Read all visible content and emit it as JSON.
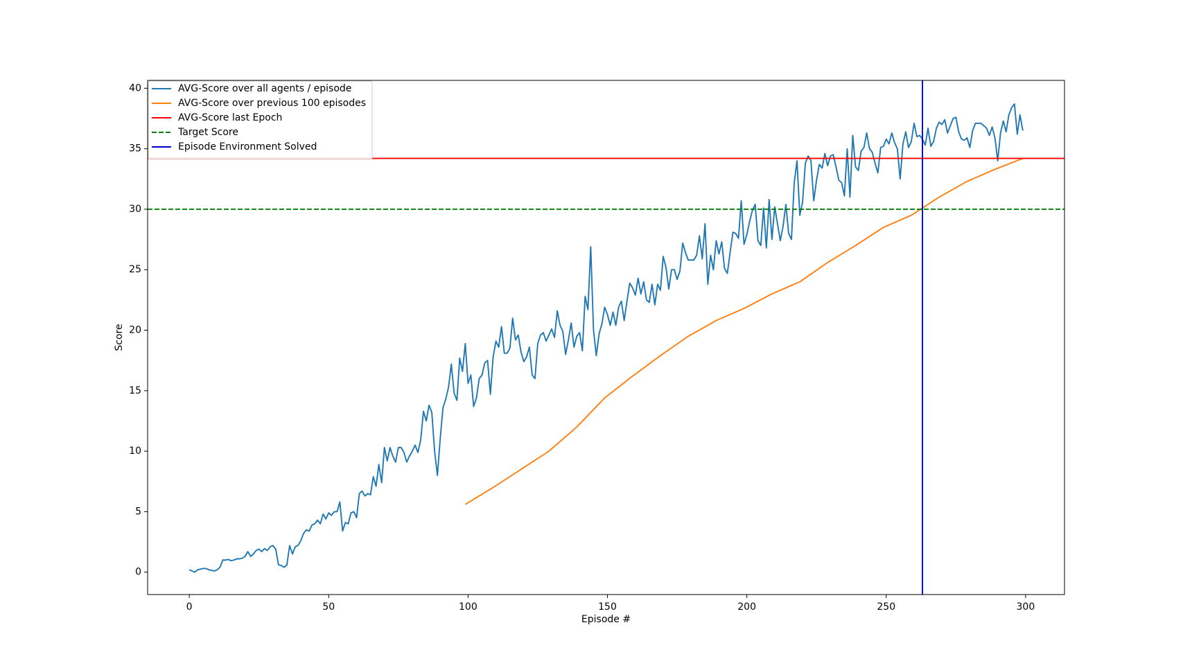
{
  "chart_data": {
    "type": "line",
    "xlabel": "Episode #",
    "ylabel": "Score",
    "xlim": [
      -14.95,
      313.95
    ],
    "ylim": [
      -1.85,
      40.65
    ],
    "xticks": [
      0,
      50,
      100,
      150,
      200,
      250,
      300
    ],
    "yticks": [
      0,
      5,
      10,
      15,
      20,
      25,
      30,
      35,
      40
    ],
    "legend": "upper left",
    "series": [
      {
        "name": "AVG-Score over all agents / episode",
        "color": "#1f77b4",
        "x": [
          0,
          1,
          2,
          3,
          4,
          5,
          6,
          7,
          8,
          9,
          10,
          11,
          12,
          13,
          14,
          15,
          16,
          17,
          18,
          19,
          20,
          21,
          22,
          23,
          24,
          25,
          26,
          27,
          28,
          29,
          30,
          31,
          32,
          33,
          34,
          35,
          36,
          37,
          38,
          39,
          40,
          41,
          42,
          43,
          44,
          45,
          46,
          47,
          48,
          49,
          50,
          51,
          52,
          53,
          54,
          55,
          56,
          57,
          58,
          59,
          60,
          61,
          62,
          63,
          64,
          65,
          66,
          67,
          68,
          69,
          70,
          71,
          72,
          73,
          74,
          75,
          76,
          77,
          78,
          79,
          80,
          81,
          82,
          83,
          84,
          85,
          86,
          87,
          88,
          89,
          90,
          91,
          92,
          93,
          94,
          95,
          96,
          97,
          98,
          99,
          100,
          101,
          102,
          103,
          104,
          105,
          106,
          107,
          108,
          109,
          110,
          111,
          112,
          113,
          114,
          115,
          116,
          117,
          118,
          119,
          120,
          121,
          122,
          123,
          124,
          125,
          126,
          127,
          128,
          129,
          130,
          131,
          132,
          133,
          134,
          135,
          136,
          137,
          138,
          139,
          140,
          141,
          142,
          143,
          144,
          145,
          146,
          147,
          148,
          149,
          150,
          151,
          152,
          153,
          154,
          155,
          156,
          157,
          158,
          159,
          160,
          161,
          162,
          163,
          164,
          165,
          166,
          167,
          168,
          169,
          170,
          171,
          172,
          173,
          174,
          175,
          176,
          177,
          178,
          179,
          180,
          181,
          182,
          183,
          184,
          185,
          186,
          187,
          188,
          189,
          190,
          191,
          192,
          193,
          194,
          195,
          196,
          197,
          198,
          199,
          200,
          201,
          202,
          203,
          204,
          205,
          206,
          207,
          208,
          209,
          210,
          211,
          212,
          213,
          214,
          215,
          216,
          217,
          218,
          219,
          220,
          221,
          222,
          223,
          224,
          225,
          226,
          227,
          228,
          229,
          230,
          231,
          232,
          233,
          234,
          235,
          236,
          237,
          238,
          239,
          240,
          241,
          242,
          243,
          244,
          245,
          246,
          247,
          248,
          249,
          250,
          251,
          252,
          253,
          254,
          255,
          256,
          257,
          258,
          259,
          260,
          261,
          262,
          263,
          264,
          265,
          266,
          267,
          268,
          269,
          270,
          271,
          272,
          273,
          274,
          275,
          276,
          277,
          278,
          279,
          280,
          281,
          282,
          283,
          284,
          285,
          286,
          287,
          288,
          289,
          290,
          291,
          292,
          293,
          294,
          295,
          296,
          297,
          298,
          299
        ],
        "values": [
          0.2,
          0.1,
          0.0,
          0.2,
          0.25,
          0.3,
          0.3,
          0.2,
          0.15,
          0.1,
          0.2,
          0.4,
          1.0,
          1.0,
          1.05,
          0.95,
          1.0,
          1.1,
          1.1,
          1.15,
          1.3,
          1.7,
          1.3,
          1.5,
          1.8,
          1.9,
          1.7,
          1.95,
          1.8,
          2.1,
          2.2,
          1.9,
          0.6,
          0.55,
          0.4,
          0.6,
          2.2,
          1.5,
          2.1,
          2.2,
          2.6,
          3.2,
          3.5,
          3.4,
          3.9,
          4.0,
          4.3,
          4.0,
          4.8,
          4.4,
          4.9,
          4.7,
          5.0,
          5.0,
          5.8,
          3.4,
          4.1,
          4.0,
          4.9,
          5.0,
          4.5,
          6.5,
          6.7,
          6.3,
          6.5,
          6.4,
          7.9,
          7.1,
          8.9,
          7.4,
          10.3,
          9.2,
          10.3,
          9.6,
          9.1,
          10.3,
          10.3,
          9.9,
          9.1,
          9.6,
          10.0,
          10.5,
          9.9,
          10.9,
          13.3,
          12.5,
          13.8,
          13.2,
          10.0,
          8.0,
          11.0,
          13.6,
          14.3,
          15.3,
          17.2,
          14.8,
          14.2,
          17.7,
          16.6,
          18.9,
          15.6,
          16.3,
          13.7,
          14.4,
          16.0,
          16.3,
          17.3,
          17.5,
          14.7,
          17.8,
          19.1,
          18.6,
          20.3,
          18.1,
          18.1,
          18.5,
          21.0,
          19.2,
          19.6,
          18.2,
          17.4,
          17.8,
          18.6,
          16.3,
          16.0,
          18.9,
          19.6,
          19.8,
          19.1,
          19.6,
          20.1,
          19.4,
          21.6,
          20.4,
          19.9,
          18.0,
          19.2,
          20.6,
          18.6,
          19.5,
          19.8,
          18.3,
          22.8,
          21.7,
          26.9,
          20.0,
          17.9,
          19.7,
          20.5,
          21.9,
          21.3,
          20.4,
          21.5,
          20.4,
          21.9,
          22.4,
          20.8,
          22.4,
          23.9,
          23.5,
          22.9,
          24.3,
          23.0,
          24.0,
          22.5,
          22.3,
          23.8,
          22.1,
          23.8,
          23.3,
          26.1,
          25.2,
          23.4,
          25.0,
          25.0,
          24.2,
          24.9,
          27.2,
          26.4,
          25.8,
          25.8,
          25.8,
          26.2,
          27.8,
          25.9,
          28.8,
          23.8,
          26.2,
          25.0,
          27.4,
          26.3,
          27.3,
          25.1,
          24.7,
          26.4,
          28.1,
          28.0,
          27.6,
          30.7,
          27.1,
          27.9,
          29.0,
          29.9,
          30.4,
          27.4,
          27.0,
          30.1,
          26.8,
          30.8,
          27.5,
          30.2,
          28.8,
          27.4,
          28.6,
          30.4,
          28.0,
          27.5,
          32.2,
          34.0,
          29.5,
          30.6,
          33.8,
          34.4,
          34.0,
          30.7,
          32.4,
          33.7,
          33.4,
          34.6,
          33.6,
          34.4,
          34.5,
          33.5,
          32.4,
          32.2,
          31.1,
          35.0,
          31.0,
          36.1,
          33.5,
          33.2,
          34.8,
          35.1,
          36.3,
          35.0,
          34.7,
          33.8,
          33.0,
          35.1,
          35.2,
          35.8,
          35.4,
          36.3,
          35.5,
          35.0,
          32.5,
          35.4,
          36.4,
          35.1,
          35.6,
          37.1,
          36.0,
          36.1,
          35.8,
          35.3,
          36.7,
          35.2,
          35.6,
          36.7,
          37.2,
          37.0,
          37.4,
          36.3,
          36.9,
          37.5,
          37.6,
          36.4,
          35.8,
          35.7,
          35.9,
          35.1,
          36.5,
          37.1,
          37.1,
          37.1,
          36.9,
          36.7,
          36.1,
          36.8,
          35.9,
          34.0,
          36.3,
          37.3,
          36.4,
          37.8,
          38.4,
          38.7,
          36.2,
          37.8,
          36.5
        ]
      },
      {
        "name": "AVG-Score over previous 100 episodes",
        "color": "#ff7f0e",
        "x": [
          99,
          109,
          119,
          129,
          139,
          149,
          159,
          169,
          179,
          189,
          199,
          209,
          219,
          229,
          239,
          249,
          259,
          269,
          279,
          289,
          299
        ],
        "values": [
          5.6,
          7.0,
          8.5,
          10.0,
          12.0,
          14.4,
          16.2,
          17.9,
          19.5,
          20.8,
          21.8,
          23.0,
          24.0,
          25.6,
          27.0,
          28.5,
          29.5,
          31.0,
          32.3,
          33.3,
          34.2
        ]
      }
    ],
    "hlines": [
      {
        "name": "AVG-Score last Epoch",
        "color": "#ff0000",
        "value": 34.2,
        "dashed": false
      },
      {
        "name": "Target Score",
        "color": "#008000",
        "value": 30,
        "dashed": true
      }
    ],
    "vlines": [
      {
        "name": "Episode Environment Solved",
        "color": "#0000cc",
        "value": 263
      }
    ]
  }
}
